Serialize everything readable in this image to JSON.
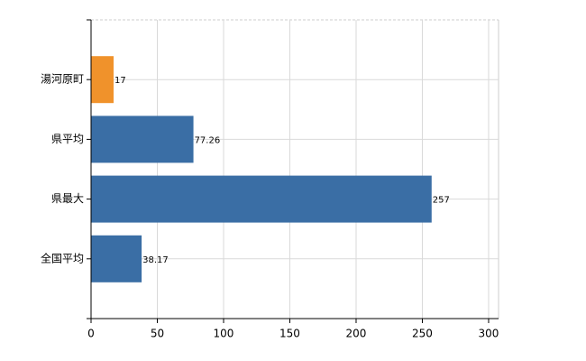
{
  "chart_data": {
    "type": "bar",
    "orientation": "horizontal",
    "categories": [
      "湯河原町",
      "県平均",
      "県最大",
      "全国平均"
    ],
    "values": [
      17,
      77.26,
      257,
      38.17
    ],
    "colors": [
      "#f0922b",
      "#3a6ea5",
      "#3a6ea5",
      "#3a6ea5"
    ],
    "xlim": [
      0,
      307.5
    ],
    "xticks": [
      0,
      50,
      100,
      150,
      200,
      250,
      300
    ],
    "grid": true
  }
}
